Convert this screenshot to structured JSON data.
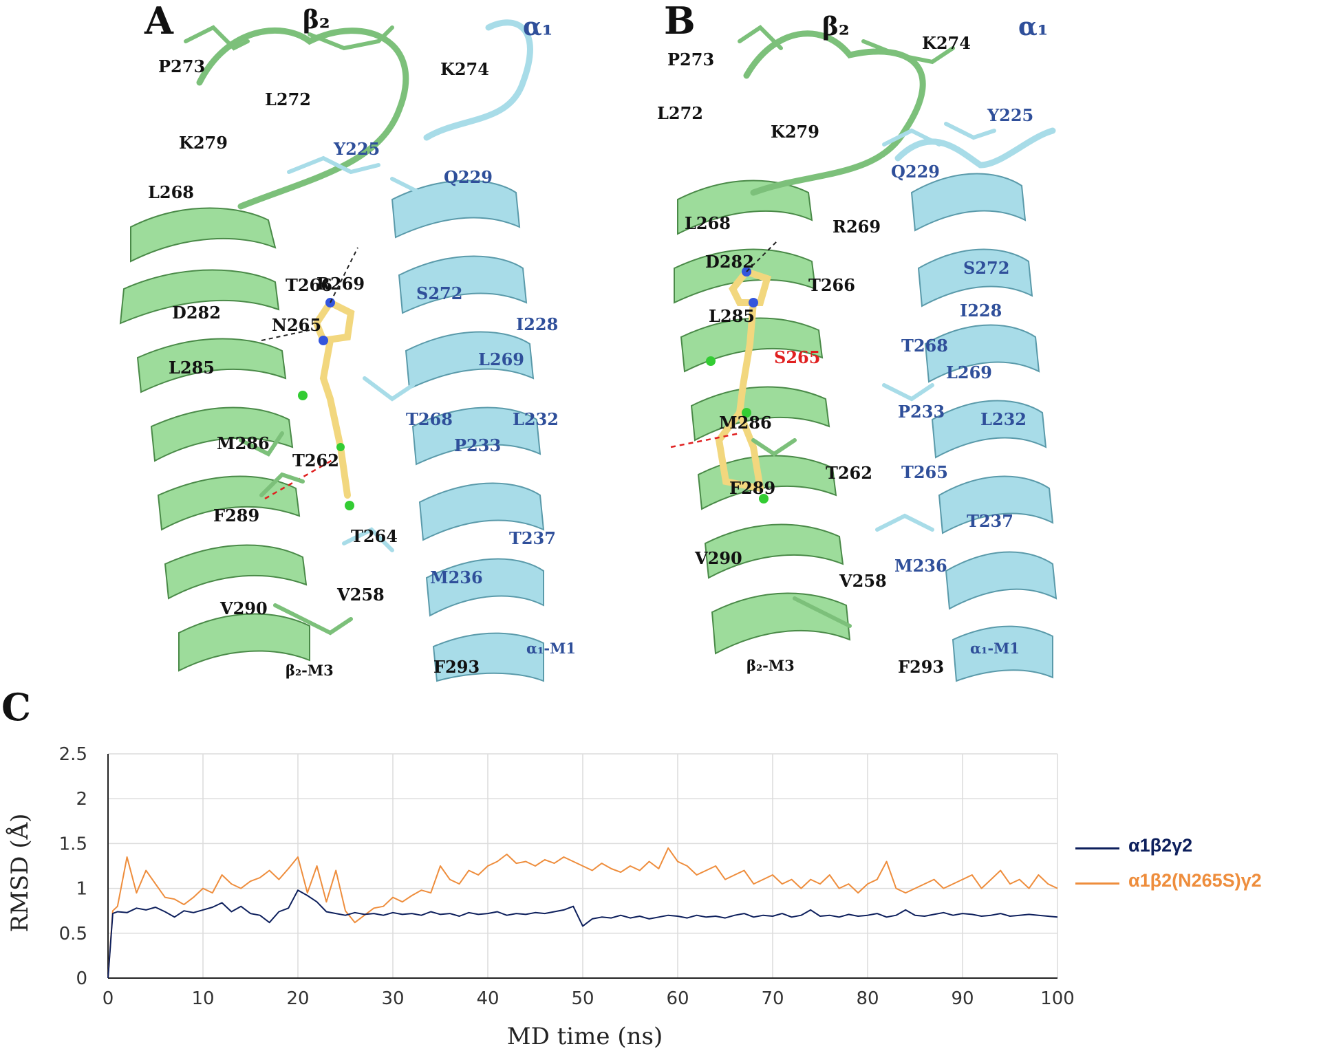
{
  "panel_a": {
    "letter": "A",
    "chain_beta": "β₂",
    "chain_alpha": "α₁",
    "labels_beta": [
      "P273",
      "L272",
      "K279",
      "L268",
      "R269",
      "T266",
      "D282",
      "N265",
      "L285",
      "M286",
      "T262",
      "F289",
      "T264",
      "V290",
      "V258",
      "F293",
      "β₂-M3"
    ],
    "labels_alpha": [
      "K274",
      "Y225",
      "Q229",
      "S272",
      "I228",
      "L269",
      "T268",
      "L232",
      "P233",
      "T237",
      "M236",
      "α₁-M1"
    ]
  },
  "panel_b": {
    "letter": "B",
    "chain_beta": "β₂",
    "chain_alpha": "α₁",
    "labels_beta": [
      "P273",
      "K274",
      "L272",
      "K279",
      "L268",
      "R269",
      "D282",
      "T266",
      "L285",
      "M286",
      "F289",
      "T262",
      "V290",
      "V258",
      "β₂-M3",
      "F293"
    ],
    "labels_alpha": [
      "Y225",
      "Q229",
      "S272",
      "I228",
      "T268",
      "L269",
      "P233",
      "L232",
      "T265",
      "T237",
      "M236",
      "α₁-M1"
    ],
    "label_mutant": "S265"
  },
  "panel_c": {
    "letter": "C"
  },
  "colors": {
    "beta_subunit": "#9ddc9b",
    "alpha_subunit": "#a8dce8",
    "series_wt": "#0d1f5c",
    "series_mut": "#ee8d3c"
  },
  "chart_data": {
    "type": "line",
    "title": "",
    "xlabel": "MD time (ns)",
    "ylabel": "RMSD (Å)",
    "xlim": [
      0,
      100
    ],
    "ylim": [
      0,
      2.5
    ],
    "xticks": [
      0,
      10,
      20,
      30,
      40,
      50,
      60,
      70,
      80,
      90,
      100
    ],
    "yticks": [
      0,
      0.5,
      1,
      1.5,
      2,
      2.5
    ],
    "ytick_labels": [
      "0",
      "0.5",
      "1",
      "1.5",
      "2",
      "2.5"
    ],
    "grid": true,
    "legend_position": "right",
    "x": [
      0,
      0.5,
      1,
      2,
      3,
      4,
      5,
      6,
      7,
      8,
      9,
      10,
      11,
      12,
      13,
      14,
      15,
      16,
      17,
      18,
      19,
      20,
      21,
      22,
      23,
      24,
      25,
      26,
      27,
      28,
      29,
      30,
      31,
      32,
      33,
      34,
      35,
      36,
      37,
      38,
      39,
      40,
      41,
      42,
      43,
      44,
      45,
      46,
      47,
      48,
      49,
      50,
      51,
      52,
      53,
      54,
      55,
      56,
      57,
      58,
      59,
      60,
      61,
      62,
      63,
      64,
      65,
      66,
      67,
      68,
      69,
      70,
      71,
      72,
      73,
      74,
      75,
      76,
      77,
      78,
      79,
      80,
      81,
      82,
      83,
      84,
      85,
      86,
      87,
      88,
      89,
      90,
      91,
      92,
      93,
      94,
      95,
      96,
      97,
      98,
      99,
      100
    ],
    "series": [
      {
        "name": "α1β2γ2",
        "values": [
          0,
          0.72,
          0.74,
          0.73,
          0.78,
          0.76,
          0.79,
          0.74,
          0.68,
          0.75,
          0.73,
          0.76,
          0.79,
          0.84,
          0.74,
          0.8,
          0.72,
          0.7,
          0.62,
          0.74,
          0.78,
          0.98,
          0.92,
          0.85,
          0.74,
          0.72,
          0.7,
          0.73,
          0.71,
          0.72,
          0.7,
          0.73,
          0.71,
          0.72,
          0.7,
          0.74,
          0.71,
          0.72,
          0.69,
          0.73,
          0.71,
          0.72,
          0.74,
          0.7,
          0.72,
          0.71,
          0.73,
          0.72,
          0.74,
          0.76,
          0.8,
          0.58,
          0.66,
          0.68,
          0.67,
          0.7,
          0.67,
          0.69,
          0.66,
          0.68,
          0.7,
          0.69,
          0.67,
          0.7,
          0.68,
          0.69,
          0.67,
          0.7,
          0.72,
          0.68,
          0.7,
          0.69,
          0.72,
          0.68,
          0.7,
          0.76,
          0.69,
          0.7,
          0.68,
          0.71,
          0.69,
          0.7,
          0.72,
          0.68,
          0.7,
          0.76,
          0.7,
          0.69,
          0.71,
          0.73,
          0.7,
          0.72,
          0.71,
          0.69,
          0.7,
          0.72,
          0.69,
          0.7,
          0.71,
          0.7,
          0.69,
          0.68
        ]
      },
      {
        "name": "α1β2(N265S)γ2",
        "values": [
          0,
          0.75,
          0.8,
          1.35,
          0.95,
          1.2,
          1.05,
          0.9,
          0.88,
          0.82,
          0.9,
          1.0,
          0.95,
          1.15,
          1.05,
          1.0,
          1.08,
          1.12,
          1.2,
          1.1,
          1.22,
          1.35,
          0.95,
          1.25,
          0.85,
          1.2,
          0.75,
          0.62,
          0.7,
          0.78,
          0.8,
          0.9,
          0.85,
          0.92,
          0.98,
          0.95,
          1.25,
          1.1,
          1.05,
          1.2,
          1.15,
          1.25,
          1.3,
          1.38,
          1.28,
          1.3,
          1.25,
          1.32,
          1.28,
          1.35,
          1.3,
          1.25,
          1.2,
          1.28,
          1.22,
          1.18,
          1.25,
          1.2,
          1.3,
          1.22,
          1.45,
          1.3,
          1.25,
          1.15,
          1.2,
          1.25,
          1.1,
          1.15,
          1.2,
          1.05,
          1.1,
          1.15,
          1.05,
          1.1,
          1.0,
          1.1,
          1.05,
          1.15,
          1.0,
          1.05,
          0.95,
          1.05,
          1.1,
          1.3,
          1.0,
          0.95,
          1.0,
          1.05,
          1.1,
          1.0,
          1.05,
          1.1,
          1.15,
          1.0,
          1.1,
          1.2,
          1.05,
          1.1,
          1.0,
          1.15,
          1.05,
          1.0
        ]
      }
    ]
  }
}
